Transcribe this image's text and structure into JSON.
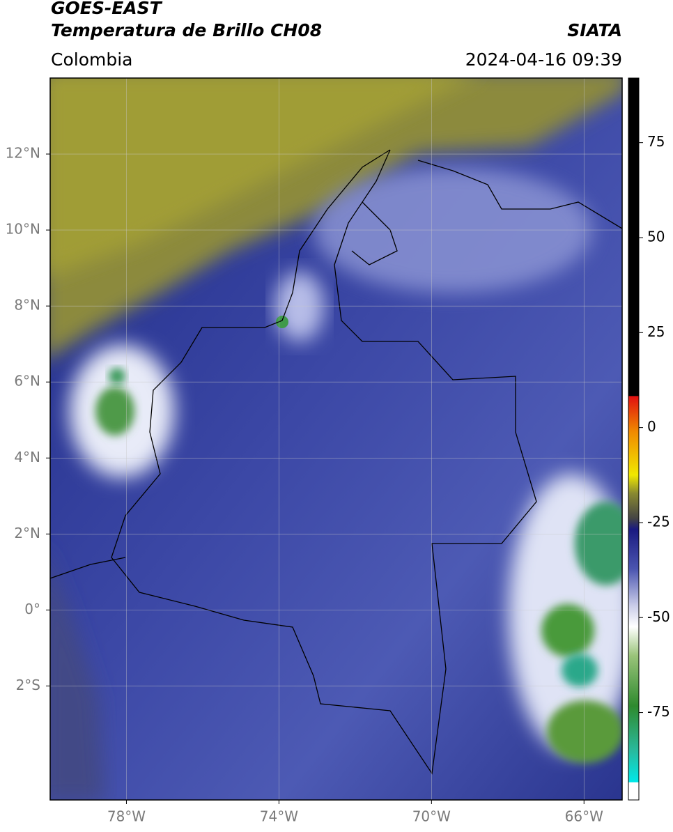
{
  "header": {
    "satellite": "GOES-EAST",
    "product": "Temperatura de Brillo CH08",
    "source": "SIATA",
    "region": "Colombia",
    "datetime": "2024-04-16 09:39"
  },
  "map": {
    "xlim": [
      -80,
      -65
    ],
    "ylim": [
      -5,
      14
    ],
    "xticks": [
      {
        "value": -78,
        "label": "78°W"
      },
      {
        "value": -74,
        "label": "74°W"
      },
      {
        "value": -70,
        "label": "70°W"
      },
      {
        "value": -66,
        "label": "66°W"
      }
    ],
    "yticks": [
      {
        "value": 12,
        "label": "12°N"
      },
      {
        "value": 10,
        "label": "10°N"
      },
      {
        "value": 8,
        "label": "8°N"
      },
      {
        "value": 6,
        "label": "6°N"
      },
      {
        "value": 4,
        "label": "4°N"
      },
      {
        "value": 2,
        "label": "2°N"
      },
      {
        "value": 0,
        "label": "0°"
      },
      {
        "value": -2,
        "label": "2°S"
      }
    ],
    "grid": true
  },
  "colorbar": {
    "lim": [
      -98,
      92
    ],
    "ticks": [
      75,
      50,
      25,
      0,
      -25,
      -50,
      -75
    ]
  }
}
